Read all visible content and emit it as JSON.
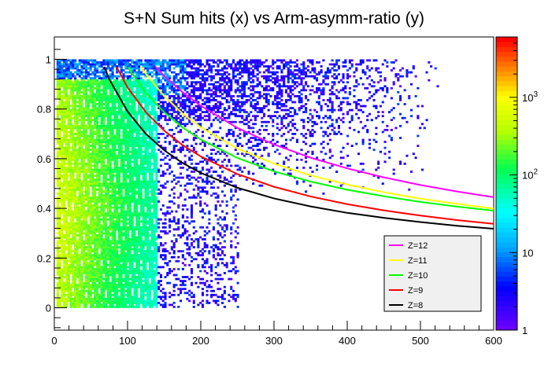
{
  "chart_data": {
    "type": "heatmap",
    "title": "S+N Sum hits (x) vs Arm-asymm-ratio (y)",
    "xlabel": "",
    "ylabel": "",
    "xlim": [
      0,
      600
    ],
    "ylim": [
      -0.09,
      1.09
    ],
    "log_z": true,
    "zlim": [
      1,
      6000
    ],
    "grid": false,
    "legend_position": "bottom-right",
    "x_ticks": [
      {
        "value": 0,
        "label": "0"
      },
      {
        "value": 100,
        "label": "100"
      },
      {
        "value": 200,
        "label": "200"
      },
      {
        "value": 300,
        "label": "300"
      },
      {
        "value": 400,
        "label": "400"
      },
      {
        "value": 500,
        "label": "500"
      },
      {
        "value": 600,
        "label": "600"
      }
    ],
    "y_ticks": [
      {
        "value": 0,
        "label": "0"
      },
      {
        "value": 0.2,
        "label": "0.2"
      },
      {
        "value": 0.4,
        "label": "0.4"
      },
      {
        "value": 0.6,
        "label": "0.6"
      },
      {
        "value": 0.8,
        "label": "0.8"
      },
      {
        "value": 1,
        "label": "1"
      }
    ],
    "colorbar_ticks": [
      {
        "value": 1,
        "label": "1"
      },
      {
        "value": 10,
        "label": "10"
      },
      {
        "value": 100,
        "label": "10^2",
        "base": "10",
        "exp": "2"
      },
      {
        "value": 1000,
        "label": "10^3",
        "base": "10",
        "exp": "3"
      }
    ],
    "density_description": "2D histogram of counts; densest (cyan-green) region x<130, y in [0,0.9]; sparse blue/purple counts extend to x~500 with ratio near 0.6-1.0",
    "series": [
      {
        "name": "Z=12",
        "color": "#ff00ff",
        "x": [
          138,
          150,
          175,
          200,
          250,
          300,
          350,
          400,
          450,
          500,
          550,
          600
        ],
        "y": [
          0.97,
          0.934,
          0.868,
          0.813,
          0.724,
          0.657,
          0.604,
          0.561,
          0.525,
          0.494,
          0.468,
          0.445
        ]
      },
      {
        "name": "Z=11",
        "color": "#ffff00",
        "x": [
          118,
          125,
          150,
          175,
          200,
          250,
          300,
          350,
          400,
          450,
          500,
          550,
          600
        ],
        "y": [
          0.97,
          0.941,
          0.852,
          0.782,
          0.726,
          0.641,
          0.58,
          0.533,
          0.496,
          0.465,
          0.439,
          0.418,
          0.399
        ]
      },
      {
        "name": "Z=10",
        "color": "#00ff00",
        "x": [
          100,
          125,
          150,
          175,
          200,
          250,
          300,
          350,
          400,
          450,
          500,
          550,
          600
        ],
        "y": [
          0.97,
          0.865,
          0.787,
          0.726,
          0.677,
          0.603,
          0.549,
          0.508,
          0.475,
          0.449,
          0.426,
          0.407,
          0.391
        ]
      },
      {
        "name": "Z=9",
        "color": "#ff0000",
        "x": [
          85,
          100,
          125,
          150,
          175,
          200,
          250,
          300,
          350,
          400,
          450,
          500,
          550,
          600
        ],
        "y": [
          0.97,
          0.887,
          0.787,
          0.713,
          0.655,
          0.609,
          0.538,
          0.487,
          0.448,
          0.417,
          0.392,
          0.371,
          0.353,
          0.338
        ]
      },
      {
        "name": "Z=8",
        "color": "#000000",
        "x": [
          68,
          75,
          100,
          125,
          150,
          175,
          200,
          250,
          300,
          350,
          400,
          450,
          500,
          550,
          600
        ],
        "y": [
          0.97,
          0.92,
          0.79,
          0.7,
          0.634,
          0.583,
          0.543,
          0.483,
          0.44,
          0.408,
          0.382,
          0.362,
          0.345,
          0.33,
          0.318
        ]
      }
    ]
  }
}
